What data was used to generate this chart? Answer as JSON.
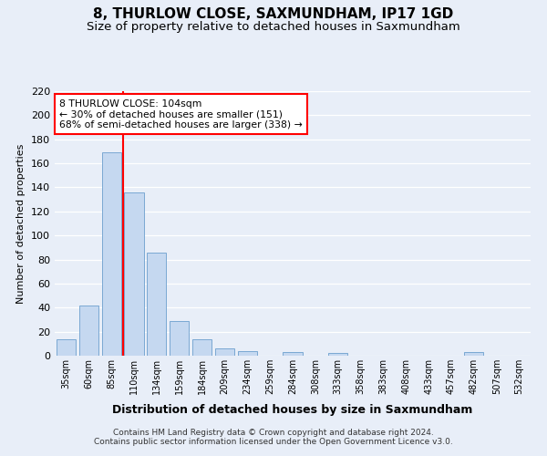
{
  "title": "8, THURLOW CLOSE, SAXMUNDHAM, IP17 1GD",
  "subtitle": "Size of property relative to detached houses in Saxmundham",
  "xlabel": "Distribution of detached houses by size in Saxmundham",
  "ylabel": "Number of detached properties",
  "footnote1": "Contains HM Land Registry data © Crown copyright and database right 2024.",
  "footnote2": "Contains public sector information licensed under the Open Government Licence v3.0.",
  "annotation_line1": "8 THURLOW CLOSE: 104sqm",
  "annotation_line2": "← 30% of detached houses are smaller (151)",
  "annotation_line3": "68% of semi-detached houses are larger (338) →",
  "bar_labels": [
    "35sqm",
    "60sqm",
    "85sqm",
    "110sqm",
    "134sqm",
    "159sqm",
    "184sqm",
    "209sqm",
    "234sqm",
    "259sqm",
    "284sqm",
    "308sqm",
    "333sqm",
    "358sqm",
    "383sqm",
    "408sqm",
    "433sqm",
    "457sqm",
    "482sqm",
    "507sqm",
    "532sqm"
  ],
  "bar_values": [
    14,
    42,
    169,
    136,
    86,
    29,
    14,
    6,
    4,
    0,
    3,
    0,
    2,
    0,
    0,
    0,
    0,
    0,
    3,
    0,
    0
  ],
  "bar_color": "#c5d8f0",
  "bar_edge_color": "#7aa8d2",
  "ref_line_x": 2.5,
  "ref_line_color": "red",
  "ylim": [
    0,
    220
  ],
  "yticks": [
    0,
    20,
    40,
    60,
    80,
    100,
    120,
    140,
    160,
    180,
    200,
    220
  ],
  "bg_color": "#e8eef8",
  "grid_color": "#ffffff",
  "title_fontsize": 11,
  "subtitle_fontsize": 9.5
}
